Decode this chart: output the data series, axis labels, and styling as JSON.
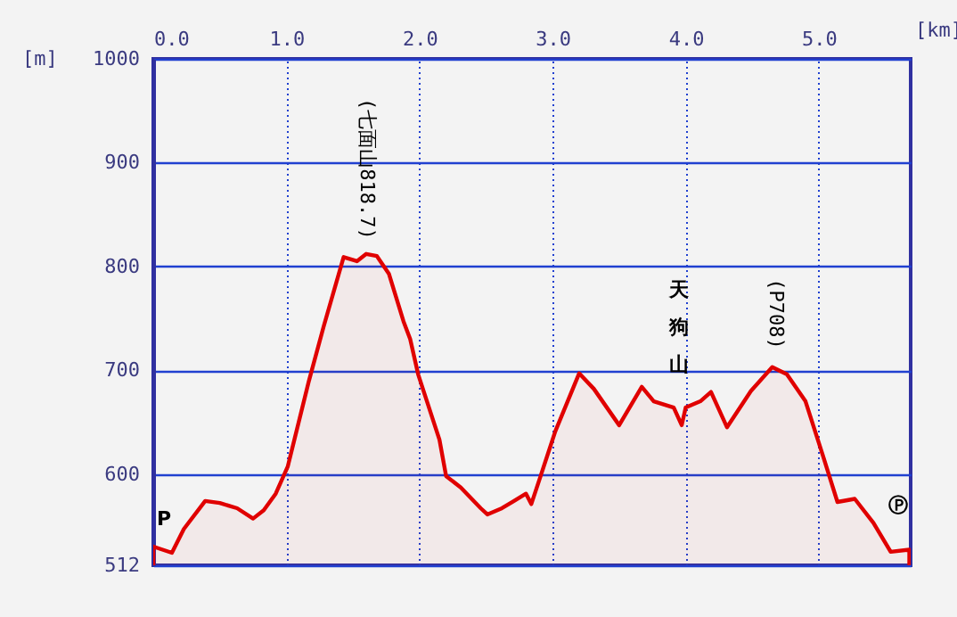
{
  "chart_data": {
    "type": "area",
    "xlabel": "[km]",
    "ylabel": "[m]",
    "color": "#e00000",
    "x": [
      0,
      0.14,
      0.23,
      0.39,
      0.5,
      0.63,
      0.75,
      0.83,
      0.92,
      1.01,
      1.17,
      1.28,
      1.43,
      1.53,
      1.6,
      1.68,
      1.77,
      1.88,
      1.93,
      1.99,
      2.15,
      2.2,
      2.31,
      2.46,
      2.51,
      2.62,
      2.71,
      2.8,
      2.84,
      2.91,
      3.02,
      3.2,
      3.31,
      3.5,
      3.67,
      3.76,
      3.91,
      3.97,
      4.0,
      4.11,
      4.19,
      4.31,
      4.49,
      4.65,
      4.76,
      4.9,
      5.03,
      5.14,
      5.27,
      5.41,
      5.54,
      5.68
    ],
    "values": [
      530,
      524,
      547,
      574,
      572,
      567,
      557,
      565,
      581,
      607,
      690,
      742,
      809,
      805,
      812,
      810,
      793,
      747,
      730,
      696,
      633,
      598,
      587,
      567,
      561,
      567,
      574,
      581,
      571,
      598,
      641,
      697,
      682,
      647,
      684,
      670,
      664,
      647,
      664,
      670,
      679,
      645,
      680,
      703,
      696,
      670,
      618,
      573,
      576,
      553,
      525,
      527
    ],
    "xlim": [
      0,
      5.69
    ],
    "ylim": [
      512,
      1000
    ],
    "xticks": [
      {
        "value": 0,
        "label": "0.0"
      },
      {
        "value": 1,
        "label": "1.0"
      },
      {
        "value": 2,
        "label": "2.0"
      },
      {
        "value": 3,
        "label": "3.0"
      },
      {
        "value": 4,
        "label": "4.0"
      },
      {
        "value": 5,
        "label": "5.0"
      }
    ],
    "yticks": [
      512,
      600,
      700,
      800,
      900,
      1000
    ],
    "grid": true,
    "annotations": [
      {
        "text": "P",
        "x": 0,
        "y": 530
      },
      {
        "text": "(七面山818.7)",
        "x": 1.6,
        "y": 812
      },
      "天狗山",
      {
        "text": "(P708)",
        "x": 4.67,
        "y": 703
      },
      "Ⓟ"
    ]
  }
}
